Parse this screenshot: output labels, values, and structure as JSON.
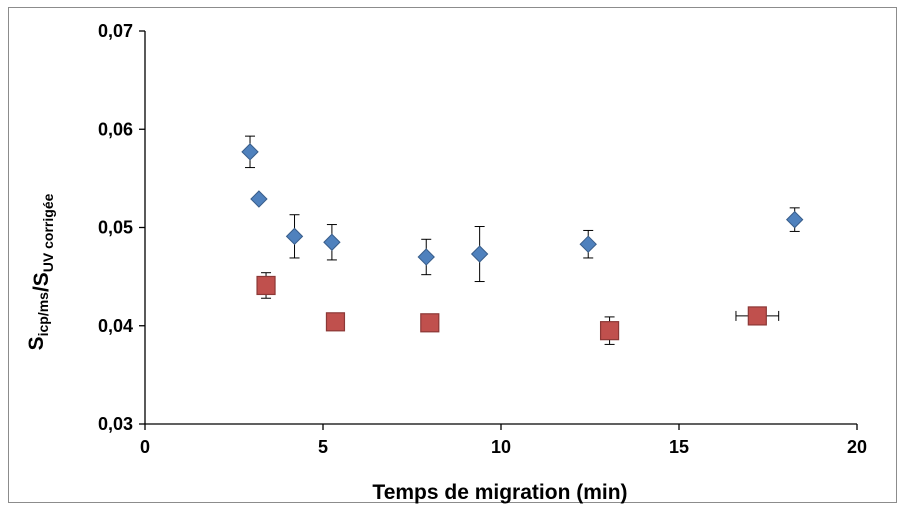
{
  "chart_data": {
    "type": "scatter",
    "xlabel": "Temps de migration (min)",
    "ylabel": {
      "parts": [
        {
          "text": "S",
          "sub": "icp/ms"
        },
        {
          "text": "/S",
          "sub": "UV corrigée"
        }
      ]
    },
    "xlim": [
      0,
      20
    ],
    "ylim": [
      0.03,
      0.07
    ],
    "x_ticks": [
      {
        "value": 0,
        "label": "0"
      },
      {
        "value": 5,
        "label": "5"
      },
      {
        "value": 10,
        "label": "10"
      },
      {
        "value": 15,
        "label": "15"
      },
      {
        "value": 20,
        "label": "20"
      }
    ],
    "y_ticks": [
      {
        "value": 0.03,
        "label": "0,03"
      },
      {
        "value": 0.04,
        "label": "0,04"
      },
      {
        "value": 0.05,
        "label": "0,05"
      },
      {
        "value": 0.06,
        "label": "0,06"
      },
      {
        "value": 0.07,
        "label": "0,07"
      }
    ],
    "grid": false,
    "legend": "none",
    "series": [
      {
        "marker": "diamond",
        "color": "#4f81bd",
        "edge_color": "#385d8a",
        "points": [
          {
            "x": 2.95,
            "y": 0.0577,
            "yerr": 0.0016,
            "xerr": 0
          },
          {
            "x": 3.2,
            "y": 0.0529,
            "yerr": 0,
            "xerr": 0
          },
          {
            "x": 4.2,
            "y": 0.0491,
            "yerr": 0.0022,
            "xerr": 0
          },
          {
            "x": 5.25,
            "y": 0.0485,
            "yerr": 0.0018,
            "xerr": 0
          },
          {
            "x": 7.9,
            "y": 0.047,
            "yerr": 0.0018,
            "xerr": 0
          },
          {
            "x": 9.4,
            "y": 0.0473,
            "yerr": 0.0028,
            "xerr": 0
          },
          {
            "x": 12.45,
            "y": 0.0483,
            "yerr": 0.0014,
            "xerr": 0
          },
          {
            "x": 18.25,
            "y": 0.0508,
            "yerr": 0.0012,
            "xerr": 0
          }
        ]
      },
      {
        "marker": "square",
        "color": "#c0504d",
        "edge_color": "#8c3836",
        "points": [
          {
            "x": 3.4,
            "y": 0.0441,
            "yerr": 0.0013,
            "xerr": 0
          },
          {
            "x": 5.35,
            "y": 0.0404,
            "yerr": 0,
            "xerr": 0
          },
          {
            "x": 8.0,
            "y": 0.0403,
            "yerr": 0,
            "xerr": 0
          },
          {
            "x": 13.05,
            "y": 0.0395,
            "yerr": 0.0014,
            "xerr": 0
          },
          {
            "x": 17.2,
            "y": 0.041,
            "yerr": 0,
            "xerr": 0.6
          }
        ]
      }
    ]
  }
}
